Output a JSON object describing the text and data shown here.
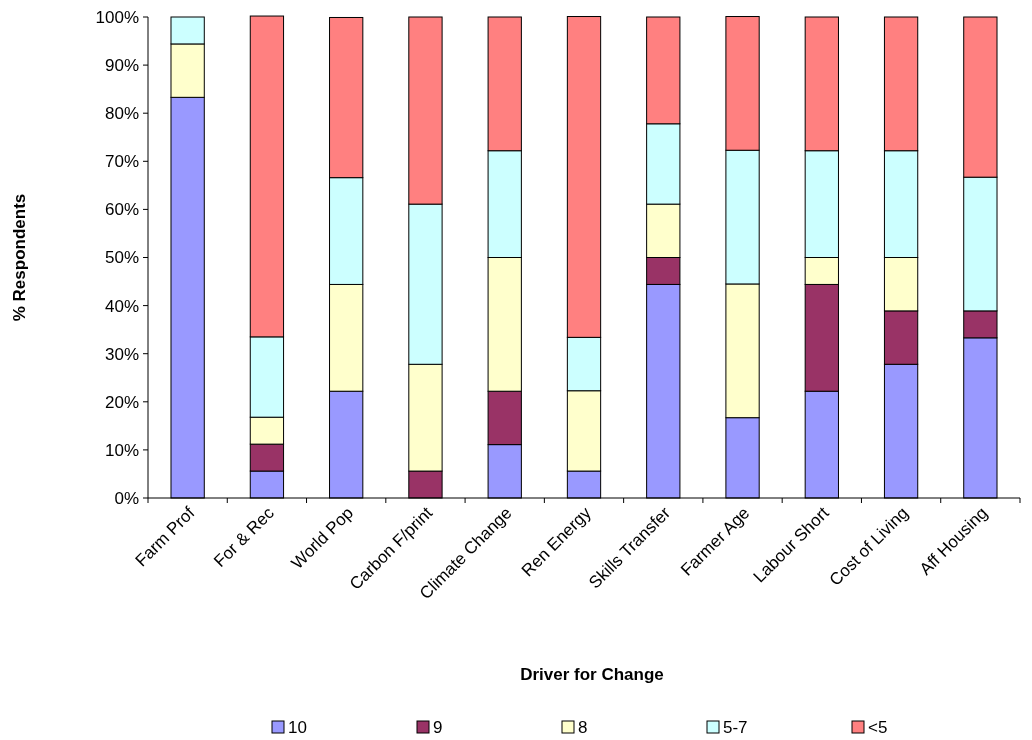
{
  "chart_data": {
    "type": "bar",
    "stacked": true,
    "xlabel": "Driver for Change",
    "ylabel": "% Respondents",
    "categories": [
      "Farm Prof",
      "For & Rec",
      "World Pop",
      "Carbon F/print",
      "Climate Change",
      "Ren Energy",
      "Skills Transfer",
      "Farmer Age",
      "Labour Short",
      "Cost of Living",
      "Aff Housing"
    ],
    "series": [
      {
        "name": "10",
        "color": "#9999ff",
        "values": [
          83.3,
          5.6,
          22.2,
          0,
          11.1,
          5.6,
          44.4,
          16.7,
          22.2,
          27.8,
          33.3
        ]
      },
      {
        "name": "9",
        "color": "#993366",
        "values": [
          0,
          5.6,
          0,
          5.6,
          11.1,
          0,
          5.6,
          0,
          22.2,
          11.1,
          5.6
        ]
      },
      {
        "name": "8",
        "color": "#ffffcc",
        "values": [
          11.1,
          5.6,
          22.2,
          22.2,
          27.8,
          16.7,
          11.1,
          27.8,
          5.6,
          11.1,
          0
        ]
      },
      {
        "name": "5-7",
        "color": "#ccffff",
        "values": [
          5.6,
          16.7,
          22.2,
          33.3,
          22.2,
          11.1,
          16.7,
          27.8,
          22.2,
          22.2,
          27.8
        ]
      },
      {
        "name": "<5",
        "color": "#ff8080",
        "values": [
          0,
          66.7,
          33.3,
          38.9,
          27.8,
          66.7,
          22.2,
          27.8,
          27.8,
          27.8,
          33.3
        ]
      }
    ],
    "ylim": [
      0,
      100
    ],
    "yticks": [
      {
        "value": 0,
        "label": "0%"
      },
      {
        "value": 10,
        "label": "10%"
      },
      {
        "value": 20,
        "label": "20%"
      },
      {
        "value": 30,
        "label": "30%"
      },
      {
        "value": 40,
        "label": "40%"
      },
      {
        "value": 50,
        "label": "50%"
      },
      {
        "value": 60,
        "label": "60%"
      },
      {
        "value": 70,
        "label": "70%"
      },
      {
        "value": 80,
        "label": "80%"
      },
      {
        "value": 90,
        "label": "90%"
      },
      {
        "value": 100,
        "label": "100%"
      }
    ],
    "grid": false,
    "legend": "bottom"
  }
}
